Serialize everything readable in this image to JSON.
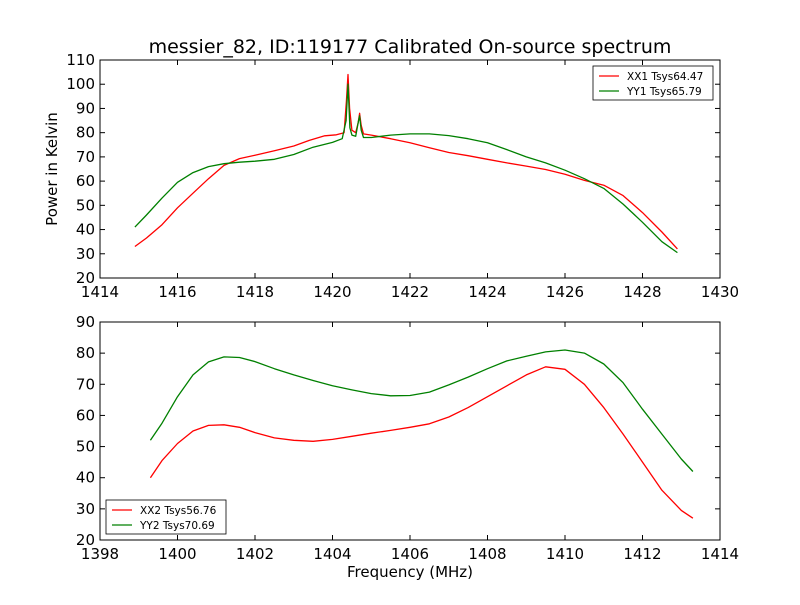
{
  "chart_data": {
    "type": "line",
    "title": "messier_82, ID:119177 Calibrated On-source spectrum",
    "panels": [
      {
        "name": "top",
        "xlabel": "",
        "ylabel": "Power in Kelvin",
        "xlim": [
          1414,
          1430
        ],
        "ylim": [
          20,
          110
        ],
        "xticks": [
          1414,
          1416,
          1418,
          1420,
          1422,
          1424,
          1426,
          1428,
          1430
        ],
        "yticks": [
          20,
          30,
          40,
          50,
          60,
          70,
          80,
          90,
          100,
          110
        ],
        "legend_position": "top-right",
        "series": [
          {
            "name": "XX1 Tsys64.47",
            "color": "#ff0000",
            "points": [
              [
                1414.9,
                33
              ],
              [
                1415.2,
                36.5
              ],
              [
                1415.6,
                42
              ],
              [
                1416.0,
                49
              ],
              [
                1416.4,
                55
              ],
              [
                1416.8,
                61
              ],
              [
                1417.2,
                66.5
              ],
              [
                1417.6,
                69.3
              ],
              [
                1418.0,
                70.7
              ],
              [
                1418.5,
                72.5
              ],
              [
                1419.0,
                74.5
              ],
              [
                1419.4,
                76.8
              ],
              [
                1419.8,
                78.7
              ],
              [
                1420.1,
                79.1
              ],
              [
                1420.3,
                80
              ],
              [
                1420.36,
                93
              ],
              [
                1420.4,
                104
              ],
              [
                1420.44,
                90
              ],
              [
                1420.5,
                81
              ],
              [
                1420.6,
                80
              ],
              [
                1420.66,
                84
              ],
              [
                1420.7,
                88
              ],
              [
                1420.74,
                83
              ],
              [
                1420.8,
                79.5
              ],
              [
                1421.0,
                79
              ],
              [
                1421.5,
                77.5
              ],
              [
                1422.0,
                75.8
              ],
              [
                1422.5,
                73.8
              ],
              [
                1423.0,
                71.8
              ],
              [
                1423.5,
                70.5
              ],
              [
                1424.0,
                69
              ],
              [
                1424.5,
                67.5
              ],
              [
                1425.0,
                66.2
              ],
              [
                1425.5,
                64.8
              ],
              [
                1426.0,
                62.8
              ],
              [
                1426.5,
                60.3
              ],
              [
                1427.0,
                58.3
              ],
              [
                1427.5,
                54
              ],
              [
                1428.0,
                47
              ],
              [
                1428.5,
                39
              ],
              [
                1428.9,
                32
              ]
            ]
          },
          {
            "name": "YY1 Tsys65.79",
            "color": "#008000",
            "points": [
              [
                1414.9,
                41
              ],
              [
                1415.2,
                46
              ],
              [
                1415.6,
                53
              ],
              [
                1416.0,
                59.5
              ],
              [
                1416.4,
                63.5
              ],
              [
                1416.8,
                66
              ],
              [
                1417.2,
                67.2
              ],
              [
                1417.6,
                67.8
              ],
              [
                1418.0,
                68.2
              ],
              [
                1418.5,
                69
              ],
              [
                1419.0,
                71
              ],
              [
                1419.5,
                74
              ],
              [
                1420.0,
                76
              ],
              [
                1420.25,
                77.5
              ],
              [
                1420.35,
                85
              ],
              [
                1420.4,
                100
              ],
              [
                1420.45,
                82
              ],
              [
                1420.5,
                79
              ],
              [
                1420.6,
                78.5
              ],
              [
                1420.66,
                84
              ],
              [
                1420.7,
                87
              ],
              [
                1420.74,
                81
              ],
              [
                1420.8,
                78
              ],
              [
                1421.0,
                78
              ],
              [
                1421.5,
                79
              ],
              [
                1422.0,
                79.5
              ],
              [
                1422.5,
                79.5
              ],
              [
                1423.0,
                78.8
              ],
              [
                1423.5,
                77.5
              ],
              [
                1424.0,
                75.8
              ],
              [
                1424.5,
                73
              ],
              [
                1425.0,
                70
              ],
              [
                1425.5,
                67.5
              ],
              [
                1426.0,
                64.5
              ],
              [
                1426.5,
                61
              ],
              [
                1427.0,
                57
              ],
              [
                1427.5,
                50.5
              ],
              [
                1428.0,
                43
              ],
              [
                1428.5,
                35
              ],
              [
                1428.9,
                30.5
              ]
            ]
          }
        ]
      },
      {
        "name": "bottom",
        "xlabel": "Frequency (MHz)",
        "ylabel": "",
        "xlim": [
          1398,
          1414
        ],
        "ylim": [
          20,
          90
        ],
        "xticks": [
          1398,
          1400,
          1402,
          1404,
          1406,
          1408,
          1410,
          1412,
          1414
        ],
        "yticks": [
          20,
          30,
          40,
          50,
          60,
          70,
          80,
          90
        ],
        "legend_position": "bottom-left",
        "series": [
          {
            "name": "XX2 Tsys56.76",
            "color": "#ff0000",
            "points": [
              [
                1399.3,
                40
              ],
              [
                1399.6,
                45.5
              ],
              [
                1400.0,
                51
              ],
              [
                1400.4,
                55
              ],
              [
                1400.8,
                56.8
              ],
              [
                1401.2,
                57
              ],
              [
                1401.6,
                56.2
              ],
              [
                1402.0,
                54.5
              ],
              [
                1402.5,
                52.8
              ],
              [
                1403.0,
                52
              ],
              [
                1403.5,
                51.7
              ],
              [
                1404.0,
                52.3
              ],
              [
                1404.5,
                53.3
              ],
              [
                1405.0,
                54.3
              ],
              [
                1405.5,
                55.2
              ],
              [
                1406.0,
                56.2
              ],
              [
                1406.5,
                57.3
              ],
              [
                1407.0,
                59.5
              ],
              [
                1407.5,
                62.5
              ],
              [
                1408.0,
                66
              ],
              [
                1408.5,
                69.5
              ],
              [
                1409.0,
                73
              ],
              [
                1409.5,
                75.6
              ],
              [
                1410.0,
                74.8
              ],
              [
                1410.5,
                70
              ],
              [
                1411.0,
                62.5
              ],
              [
                1411.5,
                54
              ],
              [
                1412.0,
                45
              ],
              [
                1412.5,
                36
              ],
              [
                1413.0,
                29.5
              ],
              [
                1413.3,
                27
              ]
            ]
          },
          {
            "name": "YY2 Tsys70.69",
            "color": "#008000",
            "points": [
              [
                1399.3,
                52
              ],
              [
                1399.6,
                57.5
              ],
              [
                1400.0,
                66
              ],
              [
                1400.4,
                73
              ],
              [
                1400.8,
                77.2
              ],
              [
                1401.2,
                78.8
              ],
              [
                1401.6,
                78.6
              ],
              [
                1402.0,
                77.3
              ],
              [
                1402.5,
                75
              ],
              [
                1403.0,
                73
              ],
              [
                1403.5,
                71.2
              ],
              [
                1404.0,
                69.5
              ],
              [
                1404.5,
                68.2
              ],
              [
                1405.0,
                67
              ],
              [
                1405.5,
                66.3
              ],
              [
                1406.0,
                66.4
              ],
              [
                1406.5,
                67.5
              ],
              [
                1407.0,
                69.8
              ],
              [
                1407.5,
                72.3
              ],
              [
                1408.0,
                75
              ],
              [
                1408.5,
                77.5
              ],
              [
                1409.0,
                79
              ],
              [
                1409.5,
                80.4
              ],
              [
                1410.0,
                81
              ],
              [
                1410.5,
                80
              ],
              [
                1411.0,
                76.5
              ],
              [
                1411.5,
                70.5
              ],
              [
                1412.0,
                62
              ],
              [
                1412.5,
                54
              ],
              [
                1413.0,
                46
              ],
              [
                1413.3,
                42
              ]
            ]
          }
        ]
      }
    ]
  }
}
